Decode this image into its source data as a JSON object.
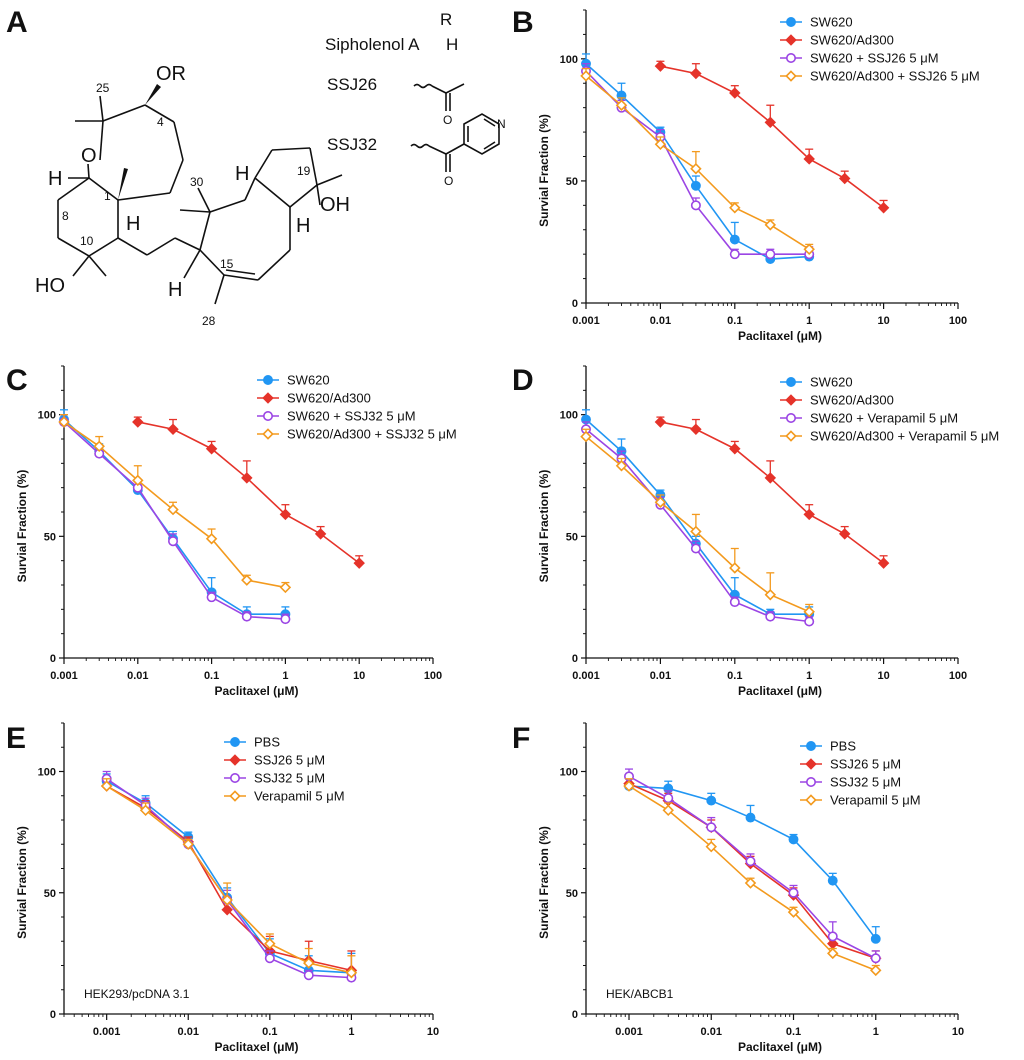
{
  "panel_a": {
    "letter": "A",
    "compounds_header": "R",
    "compounds": [
      {
        "name": "Sipholenol A",
        "r": "H"
      },
      {
        "name": "SSJ26",
        "r": ""
      },
      {
        "name": "SSJ32",
        "r": ""
      }
    ],
    "atoms": {
      "or": "OR",
      "oh_right": "OH",
      "ho_left": "HO",
      "o_ring": "O",
      "h": "H",
      "n": "N",
      "o_carbonyl": "O"
    },
    "positions": [
      "25",
      "4",
      "8",
      "1",
      "10",
      "30",
      "19",
      "15",
      "28"
    ]
  },
  "colors": {
    "sw620": "#2196f3",
    "sw620_ad300": "#e5332a",
    "sw620_inhib": "#9b45e4",
    "sw620_ad300_inhib": "#f39a1e",
    "pbs": "#2196f3",
    "ssj26": "#e5332a",
    "ssj32": "#9b45e4",
    "verapamil": "#f39a1e"
  },
  "chart_data": [
    {
      "panel": "B",
      "type": "line",
      "xlabel": "Paclitaxel (μM)",
      "ylabel": "Survial Fraction (%)",
      "x_scale": "log",
      "xlim": [
        0.001,
        100
      ],
      "ylim": [
        0,
        120
      ],
      "x_ticks": [
        0.001,
        0.01,
        0.1,
        1,
        10,
        100
      ],
      "x_tick_labels": [
        "0.001",
        "0.01",
        "0.1",
        "1",
        "10",
        "100"
      ],
      "y_ticks": [
        0,
        50,
        100
      ],
      "y_tick_labels": [
        "0",
        "50",
        "100"
      ],
      "legend_position": "top-right",
      "inset_label": "",
      "series": [
        {
          "name": "SW620",
          "color": "#2196f3",
          "marker": "filled-circle",
          "x": [
            0.001,
            0.003,
            0.01,
            0.03,
            0.1,
            0.3,
            1
          ],
          "y": [
            98,
            85,
            70,
            48,
            26,
            18,
            19
          ],
          "err": [
            4,
            5,
            2,
            4,
            7,
            2,
            3
          ]
        },
        {
          "name": "SW620/Ad300",
          "color": "#e5332a",
          "marker": "filled-diamond",
          "x": [
            0.01,
            0.03,
            0.1,
            0.3,
            1,
            3,
            10
          ],
          "y": [
            97,
            94,
            86,
            74,
            59,
            51,
            39
          ],
          "err": [
            2,
            4,
            3,
            7,
            4,
            3,
            3
          ]
        },
        {
          "name": "SW620 + SSJ26 5 μM",
          "color": "#9b45e4",
          "marker": "open-circle",
          "x": [
            0.001,
            0.003,
            0.01,
            0.03,
            0.1,
            0.3,
            1
          ],
          "y": [
            95,
            80,
            68,
            40,
            20,
            20,
            20
          ],
          "err": [
            3,
            3,
            3,
            3,
            2,
            2,
            3
          ]
        },
        {
          "name": "SW620/Ad300 + SSJ26 5 μM",
          "color": "#f39a1e",
          "marker": "open-diamond",
          "x": [
            0.001,
            0.003,
            0.01,
            0.03,
            0.1,
            0.3,
            1
          ],
          "y": [
            93,
            81,
            65,
            55,
            39,
            32,
            22
          ],
          "err": [
            3,
            3,
            3,
            7,
            2,
            2,
            2
          ]
        }
      ]
    },
    {
      "panel": "C",
      "type": "line",
      "xlabel": "Paclitaxel (μM)",
      "ylabel": "Survial Fraction (%)",
      "x_scale": "log",
      "xlim": [
        0.001,
        100
      ],
      "ylim": [
        0,
        120
      ],
      "x_ticks": [
        0.001,
        0.01,
        0.1,
        1,
        10,
        100
      ],
      "x_tick_labels": [
        "0.001",
        "0.01",
        "0.1",
        "1",
        "10",
        "100"
      ],
      "y_ticks": [
        0,
        50,
        100
      ],
      "y_tick_labels": [
        "0",
        "50",
        "100"
      ],
      "legend_position": "top-right",
      "inset_label": "",
      "series": [
        {
          "name": "SW620",
          "color": "#2196f3",
          "marker": "filled-circle",
          "x": [
            0.001,
            0.003,
            0.01,
            0.03,
            0.1,
            0.3,
            1
          ],
          "y": [
            98,
            85,
            69,
            49,
            27,
            18,
            18
          ],
          "err": [
            4,
            3,
            2,
            3,
            6,
            3,
            3
          ]
        },
        {
          "name": "SW620/Ad300",
          "color": "#e5332a",
          "marker": "filled-diamond",
          "x": [
            0.01,
            0.03,
            0.1,
            0.3,
            1,
            3,
            10
          ],
          "y": [
            97,
            94,
            86,
            74,
            59,
            51,
            39
          ],
          "err": [
            2,
            4,
            3,
            7,
            4,
            3,
            3
          ]
        },
        {
          "name": "SW620 + SSJ32 5 μM",
          "color": "#9b45e4",
          "marker": "open-circle",
          "x": [
            0.001,
            0.003,
            0.01,
            0.03,
            0.1,
            0.3,
            1
          ],
          "y": [
            97,
            84,
            70,
            48,
            25,
            17,
            16
          ],
          "err": [
            3,
            3,
            3,
            3,
            2,
            2,
            2
          ]
        },
        {
          "name": "SW620/Ad300 + SSJ32 5 μM",
          "color": "#f39a1e",
          "marker": "open-diamond",
          "x": [
            0.001,
            0.003,
            0.01,
            0.03,
            0.1,
            0.3,
            1
          ],
          "y": [
            97,
            87,
            73,
            61,
            49,
            32,
            29
          ],
          "err": [
            3,
            4,
            6,
            3,
            4,
            2,
            2
          ]
        }
      ]
    },
    {
      "panel": "D",
      "type": "line",
      "xlabel": "Paclitaxel (μM)",
      "ylabel": "Survial Fraction (%)",
      "x_scale": "log",
      "xlim": [
        0.001,
        100
      ],
      "ylim": [
        0,
        120
      ],
      "x_ticks": [
        0.001,
        0.01,
        0.1,
        1,
        10,
        100
      ],
      "x_tick_labels": [
        "0.001",
        "0.01",
        "0.1",
        "1",
        "10",
        "100"
      ],
      "y_ticks": [
        0,
        50,
        100
      ],
      "y_tick_labels": [
        "0",
        "50",
        "100"
      ],
      "legend_position": "top-right",
      "inset_label": "",
      "series": [
        {
          "name": "SW620",
          "color": "#2196f3",
          "marker": "filled-circle",
          "x": [
            0.001,
            0.003,
            0.01,
            0.03,
            0.1,
            0.3,
            1
          ],
          "y": [
            98,
            85,
            67,
            47,
            26,
            18,
            18
          ],
          "err": [
            4,
            5,
            2,
            3,
            7,
            2,
            3
          ]
        },
        {
          "name": "SW620/Ad300",
          "color": "#e5332a",
          "marker": "filled-diamond",
          "x": [
            0.01,
            0.03,
            0.1,
            0.3,
            1,
            3,
            10
          ],
          "y": [
            97,
            94,
            86,
            74,
            59,
            51,
            39
          ],
          "err": [
            2,
            4,
            3,
            7,
            4,
            3,
            3
          ]
        },
        {
          "name": "SW620 + Verapamil 5 μM",
          "color": "#9b45e4",
          "marker": "open-circle",
          "x": [
            0.001,
            0.003,
            0.01,
            0.03,
            0.1,
            0.3,
            1
          ],
          "y": [
            94,
            82,
            63,
            45,
            23,
            17,
            15
          ],
          "err": [
            3,
            3,
            3,
            3,
            2,
            2,
            2
          ]
        },
        {
          "name": "SW620/Ad300 + Verapamil 5 μM",
          "color": "#f39a1e",
          "marker": "open-diamond",
          "x": [
            0.001,
            0.003,
            0.01,
            0.03,
            0.1,
            0.3,
            1
          ],
          "y": [
            91,
            79,
            64,
            52,
            37,
            26,
            19
          ],
          "err": [
            3,
            3,
            3,
            7,
            8,
            9,
            3
          ]
        }
      ]
    },
    {
      "panel": "E",
      "type": "line",
      "xlabel": "Paclitaxel (μM)",
      "ylabel": "Survial Fraction (%)",
      "x_scale": "log",
      "xlim": [
        0.0003,
        10
      ],
      "ylim": [
        0,
        120
      ],
      "x_ticks": [
        0.001,
        0.01,
        0.1,
        1,
        10
      ],
      "x_tick_labels": [
        "0.001",
        "0.01",
        "0.1",
        "1",
        "10"
      ],
      "y_ticks": [
        0,
        50,
        100
      ],
      "y_tick_labels": [
        "0",
        "50",
        "100"
      ],
      "legend_position": "top-right",
      "inset_label": "HEK293/pcDNA 3.1",
      "series": [
        {
          "name": "PBS",
          "color": "#2196f3",
          "marker": "filled-circle",
          "x": [
            0.001,
            0.003,
            0.01,
            0.03,
            0.1,
            0.3,
            1
          ],
          "y": [
            96,
            87,
            73,
            48,
            25,
            18,
            17
          ],
          "err": [
            3,
            3,
            2,
            4,
            6,
            6,
            8
          ]
        },
        {
          "name": "SSJ26 5 μM",
          "color": "#e5332a",
          "marker": "filled-diamond",
          "x": [
            0.001,
            0.003,
            0.01,
            0.03,
            0.1,
            0.3,
            1
          ],
          "y": [
            94,
            85,
            71,
            43,
            26,
            22,
            18
          ],
          "err": [
            3,
            3,
            2,
            3,
            6,
            8,
            8
          ]
        },
        {
          "name": "SSJ32 5 μM",
          "color": "#9b45e4",
          "marker": "open-circle",
          "x": [
            0.001,
            0.003,
            0.01,
            0.03,
            0.1,
            0.3,
            1
          ],
          "y": [
            97,
            86,
            70,
            47,
            23,
            16,
            15
          ],
          "err": [
            3,
            3,
            2,
            4,
            3,
            2,
            2
          ]
        },
        {
          "name": "Verapamil 5 μM",
          "color": "#f39a1e",
          "marker": "open-diamond",
          "x": [
            0.001,
            0.003,
            0.01,
            0.03,
            0.1,
            0.3,
            1
          ],
          "y": [
            94,
            84,
            70,
            47,
            29,
            21,
            17
          ],
          "err": [
            3,
            3,
            2,
            7,
            4,
            6,
            7
          ]
        }
      ]
    },
    {
      "panel": "F",
      "type": "line",
      "xlabel": "Paclitaxel (μM)",
      "ylabel": "Survial Fraction (%)",
      "x_scale": "log",
      "xlim": [
        0.0003,
        10
      ],
      "ylim": [
        0,
        120
      ],
      "x_ticks": [
        0.001,
        0.01,
        0.1,
        1,
        10
      ],
      "x_tick_labels": [
        "0.001",
        "0.01",
        "0.1",
        "1",
        "10"
      ],
      "y_ticks": [
        0,
        50,
        100
      ],
      "y_tick_labels": [
        "0",
        "50",
        "100"
      ],
      "legend_position": "top-right",
      "inset_label": "HEK/ABCB1",
      "series": [
        {
          "name": "PBS",
          "color": "#2196f3",
          "marker": "filled-circle",
          "x": [
            0.001,
            0.003,
            0.01,
            0.03,
            0.1,
            0.3,
            1
          ],
          "y": [
            94,
            93,
            88,
            81,
            72,
            55,
            31
          ],
          "err": [
            3,
            3,
            3,
            5,
            2,
            3,
            5
          ]
        },
        {
          "name": "SSJ26 5 μM",
          "color": "#e5332a",
          "marker": "filled-diamond",
          "x": [
            0.001,
            0.003,
            0.01,
            0.03,
            0.1,
            0.3,
            1
          ],
          "y": [
            95,
            88,
            77,
            62,
            49,
            29,
            23
          ],
          "err": [
            3,
            3,
            3,
            3,
            3,
            3,
            3
          ]
        },
        {
          "name": "SSJ32 5 μM",
          "color": "#9b45e4",
          "marker": "open-circle",
          "x": [
            0.001,
            0.003,
            0.01,
            0.03,
            0.1,
            0.3,
            1
          ],
          "y": [
            98,
            89,
            77,
            63,
            50,
            32,
            23
          ],
          "err": [
            3,
            3,
            4,
            3,
            3,
            6,
            3
          ]
        },
        {
          "name": "Verapamil 5 μM",
          "color": "#f39a1e",
          "marker": "open-diamond",
          "x": [
            0.001,
            0.003,
            0.01,
            0.03,
            0.1,
            0.3,
            1
          ],
          "y": [
            94,
            84,
            69,
            54,
            42,
            25,
            18
          ],
          "err": [
            3,
            3,
            3,
            2,
            2,
            2,
            2
          ]
        }
      ]
    }
  ]
}
